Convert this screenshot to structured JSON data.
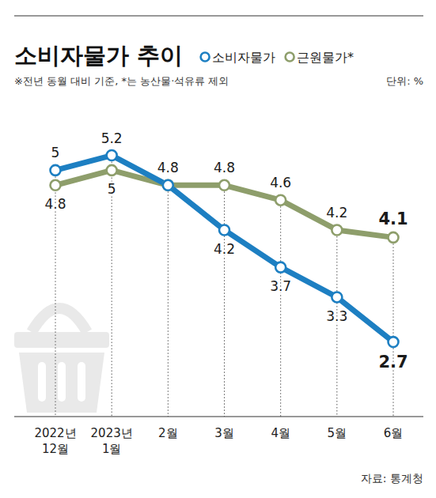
{
  "chart_data": {
    "type": "line",
    "title": "소비자물가 추이",
    "subtitle": "※전년 동월 대비 기준, *는 농산물·석유류 제외",
    "unit": "단위: %",
    "source": "자료: 통계청",
    "categories": [
      "2022년\n12월",
      "2023년\n1월",
      "2월",
      "3월",
      "4월",
      "5월",
      "6월"
    ],
    "series": [
      {
        "name": "소비자물가",
        "color": "#1d7fc2",
        "marker": "circle",
        "values": [
          5,
          5.2,
          4.8,
          4.2,
          3.7,
          3.3,
          2.7
        ]
      },
      {
        "name": "근원물가*",
        "color": "#8e9e6b",
        "marker": "circle",
        "values": [
          4.8,
          5,
          4.8,
          4.8,
          4.6,
          4.2,
          4.1
        ]
      }
    ],
    "ylim": [
      1.7,
      6
    ],
    "yticks": [],
    "tick_labels": "x",
    "data_labels": true,
    "grid": true,
    "legend": "top"
  }
}
